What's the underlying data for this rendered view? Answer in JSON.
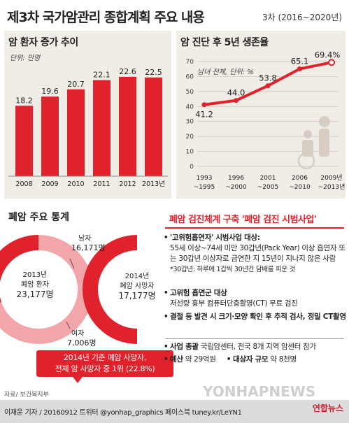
{
  "header": {
    "title": "제3차 국가암관리 종합계획 주요 내용",
    "period": "3차 (2016~2020년)"
  },
  "incidence": {
    "title": "암 환자 증가 추이",
    "unit": "단위: 만명"
  },
  "survival": {
    "title": "암 진단 후 5년 생존율",
    "unit": "남녀 전체, 단위: %"
  },
  "stats": {
    "title": "폐암 주요 통계",
    "patients": {
      "year_label": "2013년",
      "label": "폐암 환자",
      "total": "23,177명",
      "male_label": "남자",
      "male": "16,171명",
      "female_label": "여자",
      "female": "7,006명"
    },
    "deaths": {
      "year_label": "2014년",
      "label": "폐암 사망자",
      "total": "17,177명"
    },
    "callout_line1": "2014년 기준 폐암 사망자,",
    "callout_line2": "전체 암 사망자 중 1위 (22.8%)"
  },
  "screening": {
    "title": "폐암 검진체계 구축 '폐암 검진 시범사업'",
    "t1": "'고위험흡연자' 시범사업 대상:",
    "t1_body": "55세 이상~74세 미만 30갑년(Pack Year) 이상 흡연자 또는 30갑년 이상자로 금연한 지 15년이 지나지 않은 사람",
    "t1_note": "*30갑년: 하루에 1갑씩 30년간 담배를 피운 것",
    "t2": "고위험 흡연군 대상",
    "t2_body": "저선량 흉부 컴퓨터단층촬영(CT) 무료 검진",
    "t3": "결절 등 발견 시 크기·모양 확인 후 추적 검사, 정밀 CT촬영",
    "t4_bold": "사업 총괄",
    "t4_rest": " 국립암센터, 전국 8개 지역 암센터 참가",
    "t5_bold": "예산",
    "t5_rest": " 약 29억원",
    "t6_bold": "대상자 규모",
    "t6_rest": " 약 8천명"
  },
  "footer": {
    "source": "자료/ 보건복지부",
    "credit": "이재윤 기자 / 20160912  트위터 @yonhap_graphics  페이스북 tuney.kr/LeYN1",
    "logo": "연합뉴스",
    "watermark": "YONHAPNEWS"
  },
  "colors": {
    "accent": "#e0222c",
    "panel": "#f0ece6",
    "pink": "#f3a6a9"
  },
  "chart_data": [
    {
      "type": "bar",
      "title": "암 환자 증가 추이",
      "unit": "단위: 만명",
      "categories": [
        "2008",
        "2009",
        "2010",
        "2011",
        "2012",
        "2013년"
      ],
      "values": [
        18.2,
        19.6,
        20.7,
        22.1,
        22.6,
        22.5
      ],
      "value_labels": [
        "18.2",
        "19.6",
        "20.7",
        "22.1",
        "22.6",
        "22.5"
      ],
      "ylim": [
        0,
        25
      ],
      "color": "#e0222c"
    },
    {
      "type": "line",
      "title": "암 진단 후 5년 생존율",
      "unit": "남녀 전체, 단위: %",
      "categories": [
        [
          "1993",
          "~1995"
        ],
        [
          "1996",
          "~2000"
        ],
        [
          "2001",
          "~2005"
        ],
        [
          "2006",
          "~2010"
        ],
        [
          "2009년",
          "~2013년"
        ]
      ],
      "values": [
        41.2,
        44.0,
        53.8,
        65.1,
        69.4
      ],
      "value_labels": [
        "41.2",
        "44.0",
        "53.8",
        "65.1",
        "69.4%"
      ],
      "yticks": [
        0,
        10,
        20,
        30,
        40,
        50,
        60,
        70
      ],
      "ylim": [
        0,
        70
      ],
      "grid": true,
      "color": "#e0222c"
    },
    {
      "type": "pie",
      "title": "2013년 폐암 환자",
      "slices": [
        {
          "name": "남자",
          "value": 16171
        },
        {
          "name": "여자",
          "value": 7006
        }
      ],
      "colors": [
        "#f3a6a9",
        "#e0222c"
      ]
    }
  ]
}
